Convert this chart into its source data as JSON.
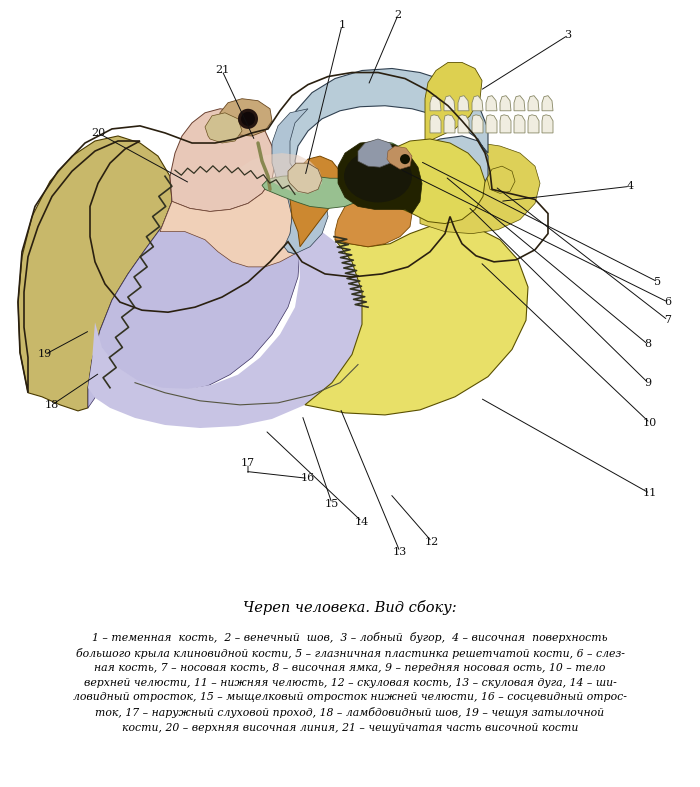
{
  "title": "Череп человека. Вид сбоку:",
  "bg_color": "#ffffff",
  "caption_text": "1 – теменная  кость,  2 – венечный  шов,  3 – лобный  бугор,  4 – височная  поверхность\nбольшого крыла клиновидной кости, 5 – глазничная пластинка решетчатой кости, 6 – слез-\nная кость, 7 – носовая кость, 8 – височная ямка, 9 – передняя носовая ость, 10 – тело\nверхней челюсти, 11 – нижняя челюсть, 12 – скуловая кость, 13 – скуловая дуга, 14 – ши-\nловидный отросток, 15 – мыщелковый отросток нижней челюсти, 16 – сосцевидный отрос-\nток, 17 – наружный слуховой проход, 18 – ламбдовидный шов, 19 – чешуя затылочной\nкости, 20 – верхняя височная линия, 21 – чешуйчатая часть височной кости"
}
